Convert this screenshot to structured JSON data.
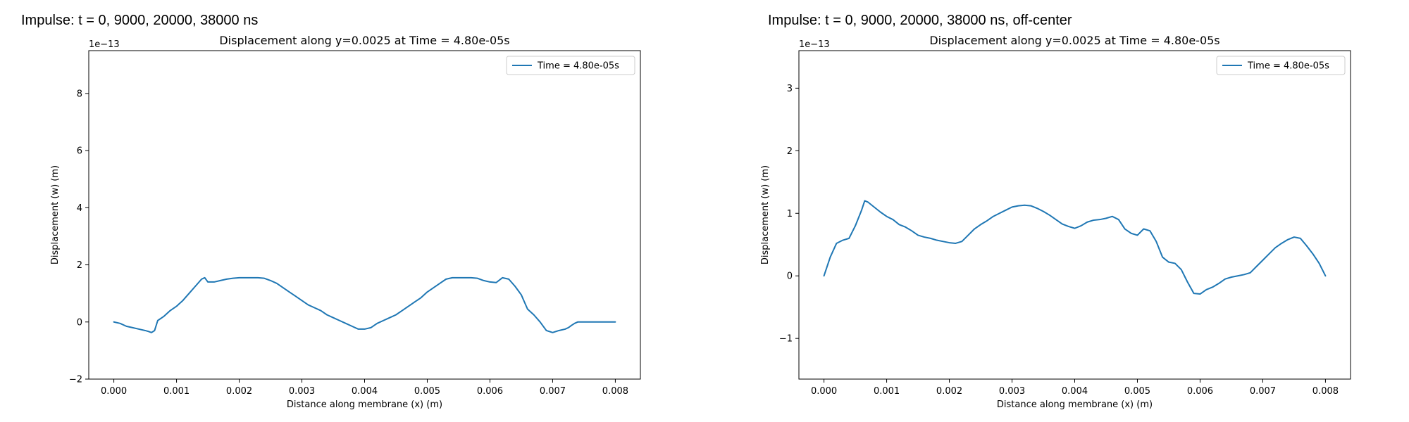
{
  "panels": [
    {
      "suptitle": "Impulse: t = 0, 9000, 20000, 38000 ns"
    },
    {
      "suptitle": "Impulse: t = 0, 9000, 20000, 38000 ns, off-center"
    }
  ],
  "chart_data": [
    {
      "type": "line",
      "title": "Displacement along y=0.0025 at Time = 4.80e-05s",
      "xlabel": "Distance along membrane (x) (m)",
      "ylabel": "Displacement (w) (m)",
      "y_scale_label": "1e−13",
      "xlim": [
        -0.0004,
        0.0084
      ],
      "ylim": [
        -2,
        9.5
      ],
      "xticks": [
        0.0,
        0.001,
        0.002,
        0.003,
        0.004,
        0.005,
        0.006,
        0.007,
        0.008
      ],
      "xtick_labels": [
        "0.000",
        "0.001",
        "0.002",
        "0.003",
        "0.004",
        "0.005",
        "0.006",
        "0.007",
        "0.008"
      ],
      "yticks": [
        -2,
        0,
        2,
        4,
        6,
        8
      ],
      "ytick_labels": [
        "−2",
        "0",
        "2",
        "4",
        "6",
        "8"
      ],
      "grid": false,
      "legend_position": "top-right",
      "series": [
        {
          "name": "Time = 4.80e-05s",
          "color": "#1f77b4",
          "x": [
            0.0,
            0.0001,
            0.0002,
            0.0003,
            0.0004,
            0.0005,
            0.00055,
            0.0006,
            0.00065,
            0.0007,
            0.0008,
            0.0009,
            0.001,
            0.0011,
            0.0012,
            0.0013,
            0.0014,
            0.00145,
            0.0015,
            0.0016,
            0.0017,
            0.0018,
            0.0019,
            0.002,
            0.0021,
            0.0022,
            0.0023,
            0.0024,
            0.0025,
            0.0026,
            0.0027,
            0.0028,
            0.0029,
            0.003,
            0.0031,
            0.0032,
            0.0033,
            0.0034,
            0.0035,
            0.0036,
            0.0037,
            0.0038,
            0.0039,
            0.004,
            0.0041,
            0.0042,
            0.0043,
            0.0044,
            0.0045,
            0.0046,
            0.0047,
            0.0048,
            0.0049,
            0.005,
            0.0051,
            0.0052,
            0.0053,
            0.0054,
            0.0055,
            0.0056,
            0.0057,
            0.0058,
            0.0059,
            0.006,
            0.0061,
            0.0062,
            0.0063,
            0.0064,
            0.0065,
            0.00655,
            0.0066,
            0.0067,
            0.0068,
            0.0069,
            0.007,
            0.0071,
            0.0072,
            0.00725,
            0.0073,
            0.00735,
            0.0074,
            0.0075,
            0.0076,
            0.0077,
            0.0078,
            0.0079,
            0.008
          ],
          "y": [
            0.0,
            -0.05,
            -0.15,
            -0.2,
            -0.25,
            -0.3,
            -0.33,
            -0.37,
            -0.3,
            0.05,
            0.2,
            0.4,
            0.55,
            0.75,
            1.0,
            1.25,
            1.5,
            1.55,
            1.4,
            1.4,
            1.45,
            1.5,
            1.53,
            1.55,
            1.55,
            1.55,
            1.55,
            1.53,
            1.45,
            1.35,
            1.2,
            1.05,
            0.9,
            0.75,
            0.6,
            0.5,
            0.4,
            0.25,
            0.15,
            0.05,
            -0.05,
            -0.15,
            -0.25,
            -0.25,
            -0.2,
            -0.05,
            0.05,
            0.15,
            0.25,
            0.4,
            0.55,
            0.7,
            0.85,
            1.05,
            1.2,
            1.35,
            1.5,
            1.55,
            1.55,
            1.55,
            1.55,
            1.53,
            1.45,
            1.4,
            1.38,
            1.55,
            1.5,
            1.25,
            0.95,
            0.7,
            0.45,
            0.25,
            0.0,
            -0.3,
            -0.37,
            -0.3,
            -0.25,
            -0.2,
            -0.12,
            -0.05,
            0.0,
            0.0,
            0.0,
            0.0,
            0.0,
            0.0,
            0.0
          ]
        }
      ]
    },
    {
      "type": "line",
      "title": "Displacement along y=0.0025 at Time = 4.80e-05s",
      "xlabel": "Distance along membrane (x) (m)",
      "ylabel": "Displacement (w) (m)",
      "y_scale_label": "1e−13",
      "xlim": [
        -0.0004,
        0.0084
      ],
      "ylim": [
        -1.65,
        3.6
      ],
      "xticks": [
        0.0,
        0.001,
        0.002,
        0.003,
        0.004,
        0.005,
        0.006,
        0.007,
        0.008
      ],
      "xtick_labels": [
        "0.000",
        "0.001",
        "0.002",
        "0.003",
        "0.004",
        "0.005",
        "0.006",
        "0.007",
        "0.008"
      ],
      "yticks": [
        -1,
        0,
        1,
        2,
        3
      ],
      "ytick_labels": [
        "−1",
        "0",
        "1",
        "2",
        "3"
      ],
      "grid": false,
      "legend_position": "top-right",
      "series": [
        {
          "name": "Time = 4.80e-05s",
          "color": "#1f77b4",
          "x": [
            0.0,
            0.0001,
            0.0002,
            0.0003,
            0.0004,
            0.0005,
            0.0006,
            0.00065,
            0.0007,
            0.0008,
            0.0009,
            0.001,
            0.0011,
            0.0012,
            0.0013,
            0.0014,
            0.0015,
            0.0016,
            0.0017,
            0.0018,
            0.0019,
            0.002,
            0.0021,
            0.0022,
            0.0023,
            0.0024,
            0.0025,
            0.0026,
            0.0027,
            0.0028,
            0.0029,
            0.003,
            0.0031,
            0.0032,
            0.0033,
            0.0034,
            0.0035,
            0.0036,
            0.0037,
            0.0038,
            0.0039,
            0.004,
            0.0041,
            0.0042,
            0.0043,
            0.0044,
            0.0045,
            0.0046,
            0.0047,
            0.0048,
            0.0049,
            0.005,
            0.0051,
            0.0052,
            0.0053,
            0.0054,
            0.0055,
            0.0056,
            0.0057,
            0.0058,
            0.0059,
            0.006,
            0.0061,
            0.0062,
            0.0063,
            0.0064,
            0.0065,
            0.0066,
            0.0067,
            0.0068,
            0.0069,
            0.007,
            0.0071,
            0.0072,
            0.0073,
            0.0074,
            0.0075,
            0.0076,
            0.0077,
            0.0078,
            0.0079,
            0.008
          ],
          "y": [
            0.0,
            0.3,
            0.52,
            0.57,
            0.6,
            0.8,
            1.05,
            1.2,
            1.18,
            1.1,
            1.02,
            0.95,
            0.9,
            0.82,
            0.78,
            0.72,
            0.65,
            0.62,
            0.6,
            0.57,
            0.55,
            0.53,
            0.52,
            0.55,
            0.65,
            0.75,
            0.82,
            0.88,
            0.95,
            1.0,
            1.05,
            1.1,
            1.12,
            1.13,
            1.12,
            1.08,
            1.03,
            0.97,
            0.9,
            0.83,
            0.79,
            0.76,
            0.8,
            0.86,
            0.89,
            0.9,
            0.92,
            0.95,
            0.9,
            0.75,
            0.68,
            0.65,
            0.75,
            0.72,
            0.55,
            0.3,
            0.22,
            0.2,
            0.1,
            -0.1,
            -0.28,
            -0.29,
            -0.22,
            -0.18,
            -0.12,
            -0.05,
            -0.02,
            0.0,
            0.02,
            0.05,
            0.15,
            0.25,
            0.35,
            0.45,
            0.52,
            0.58,
            0.62,
            0.6,
            0.48,
            0.35,
            0.2,
            0.0
          ]
        }
      ]
    }
  ]
}
